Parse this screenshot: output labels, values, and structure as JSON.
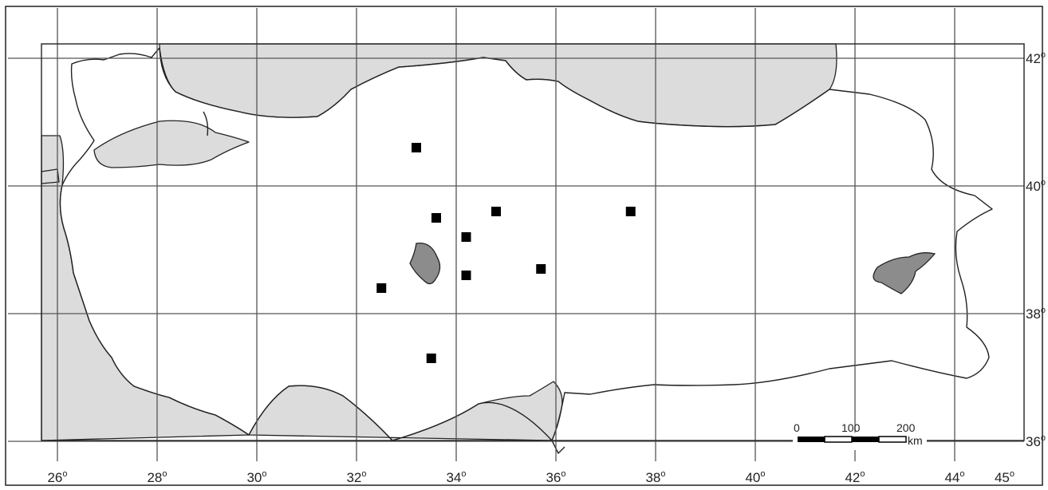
{
  "map": {
    "longitude_ticks": [
      "26",
      "28",
      "30",
      "32",
      "34",
      "36",
      "38",
      "40",
      "42",
      "44",
      "45"
    ],
    "latitude_ticks": [
      "42",
      "40",
      "38",
      "36"
    ],
    "degree_symbol": "o",
    "colors": {
      "sea": "#dcdcdc",
      "lake": "#8c8c8c",
      "land": "#ffffff",
      "grid": "#555555",
      "point": "#000000"
    },
    "scale_bar": {
      "labels": [
        "0",
        "100",
        "200"
      ],
      "unit": "km"
    },
    "lakes": [
      "Lake Tuz",
      "Lake Van"
    ]
  },
  "chart_data": {
    "type": "scatter",
    "xlabel": "",
    "ylabel": "",
    "xlim": [
      25.8,
      45.3
    ],
    "ylim": [
      35.9,
      42.4
    ],
    "x_ticks": [
      26,
      28,
      30,
      32,
      34,
      36,
      38,
      40,
      42,
      44,
      45
    ],
    "y_ticks": [
      36,
      38,
      40,
      42
    ],
    "grid": true,
    "points": [
      {
        "x": 33.2,
        "y": 40.6
      },
      {
        "x": 33.6,
        "y": 39.5
      },
      {
        "x": 34.8,
        "y": 39.6
      },
      {
        "x": 37.5,
        "y": 39.6
      },
      {
        "x": 34.2,
        "y": 39.2
      },
      {
        "x": 34.2,
        "y": 38.6
      },
      {
        "x": 35.7,
        "y": 38.7
      },
      {
        "x": 32.5,
        "y": 38.4
      },
      {
        "x": 33.5,
        "y": 37.3
      }
    ]
  }
}
